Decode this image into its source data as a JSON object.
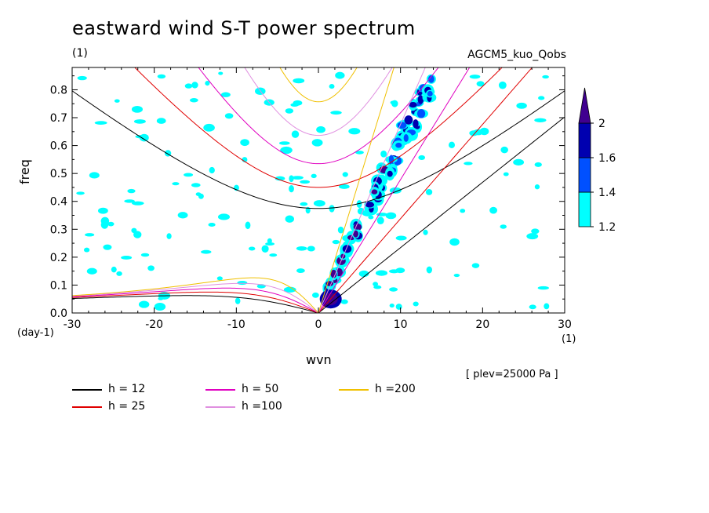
{
  "chart_data": {
    "type": "contour",
    "title": "eastward wind S-T power spectrum",
    "subtitle": "(1)",
    "model_label": "AGCM5_kuo_Qobs",
    "xlabel": "wvn",
    "ylabel": "freq",
    "x_unit": "(1)",
    "y_unit": "(day-1)",
    "footnote": "[ plev=25000 Pa ]",
    "xlim": [
      -30,
      30
    ],
    "ylim": [
      0,
      0.88
    ],
    "x_ticks": [
      "-30",
      "-20",
      "-10",
      "0",
      "10",
      "20",
      "30"
    ],
    "y_ticks": [
      "0.0",
      "0.1",
      "0.2",
      "0.3",
      "0.4",
      "0.5",
      "0.6",
      "0.7",
      "0.8"
    ],
    "colorbar": {
      "levels": [
        "1.2",
        "1.4",
        "1.6",
        "2"
      ],
      "colors": [
        "#00ffff",
        "#0050ff",
        "#0000b0",
        "#400090"
      ]
    },
    "dispersion_curves": [
      {
        "name": "h = 12",
        "color": "#000000",
        "equivalent_depth": 12
      },
      {
        "name": "h = 25",
        "color": "#e00000",
        "equivalent_depth": 25
      },
      {
        "name": "h = 50",
        "color": "#e000c0",
        "equivalent_depth": 50
      },
      {
        "name": "h =100",
        "color": "#e090e0",
        "equivalent_depth": 100
      },
      {
        "name": "h =200",
        "color": "#f0c000",
        "equivalent_depth": 200
      }
    ]
  }
}
